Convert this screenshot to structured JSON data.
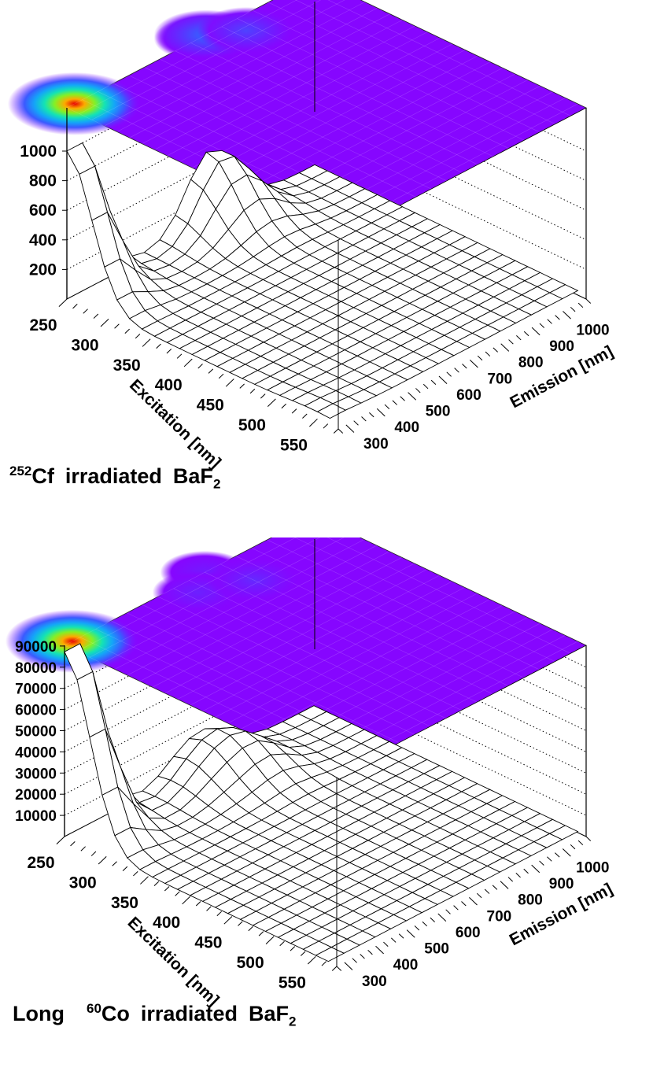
{
  "chart_data": [
    {
      "type": "surface3d",
      "x_label": "Excitation [nm]",
      "y_label": "Emission [nm]",
      "z_label": "",
      "x_range": [
        250,
        575
      ],
      "y_range": [
        275,
        1075
      ],
      "z_range": [
        0,
        1100
      ],
      "x_ticks": [
        "250",
        "300",
        "350",
        "400",
        "450",
        "500",
        "550"
      ],
      "y_ticks": [
        "300",
        "400",
        "500",
        "600",
        "700",
        "800",
        "900",
        "1000"
      ],
      "z_ticks": [
        "200",
        "400",
        "600",
        "800",
        "1000"
      ],
      "excitation_nm": [
        250,
        265,
        280,
        295,
        310,
        325,
        340,
        355,
        370,
        385,
        400,
        415,
        430,
        445,
        460,
        475,
        490,
        505,
        520,
        535,
        550,
        565
      ],
      "emission_nm": [
        275,
        325,
        375,
        425,
        475,
        525,
        575,
        625,
        675,
        725,
        775,
        825,
        875,
        925,
        975,
        1025,
        1075
      ],
      "peaks": [
        {
          "excitation_nm": 250,
          "emission_nm": 300,
          "value": 1040
        },
        {
          "excitation_nm": 250,
          "emission_nm": 700,
          "value": 90
        },
        {
          "excitation_nm": 250,
          "emission_nm": 725,
          "value": 300
        },
        {
          "excitation_nm": 270,
          "emission_nm": 800,
          "value": 200
        },
        {
          "excitation_nm": 545,
          "emission_nm": 300,
          "value": 20
        }
      ],
      "baseline": 30,
      "grid": true,
      "top_color_map": true,
      "caption_prefix": "252",
      "caption_element": "Cf",
      "caption_text": "irradiated",
      "caption_crystal": "BaF",
      "caption_sub": "2"
    },
    {
      "type": "surface3d",
      "x_label": "Excitation [nm]",
      "y_label": "Emission [nm]",
      "z_label": "",
      "x_range": [
        250,
        575
      ],
      "y_range": [
        275,
        1075
      ],
      "z_range": [
        0,
        95000
      ],
      "x_ticks": [
        "250",
        "300",
        "350",
        "400",
        "450",
        "500",
        "550"
      ],
      "y_ticks": [
        "300",
        "400",
        "500",
        "600",
        "700",
        "800",
        "900",
        "1000"
      ],
      "z_ticks": [
        "10000",
        "20000",
        "30000",
        "40000",
        "50000",
        "60000",
        "70000",
        "80000",
        "90000"
      ],
      "excitation_nm": [
        250,
        265,
        280,
        295,
        310,
        325,
        340,
        355,
        370,
        385,
        400,
        415,
        430,
        445,
        460,
        475,
        490,
        505,
        520,
        535,
        550,
        565
      ],
      "emission_nm": [
        275,
        325,
        375,
        425,
        475,
        525,
        575,
        625,
        675,
        725,
        775,
        825,
        875,
        925,
        975,
        1025,
        1075
      ],
      "peaks": [
        {
          "excitation_nm": 250,
          "emission_nm": 300,
          "value": 93000
        },
        {
          "excitation_nm": 250,
          "emission_nm": 725,
          "value": 8000
        },
        {
          "excitation_nm": 270,
          "emission_nm": 650,
          "value": 10000
        },
        {
          "excitation_nm": 290,
          "emission_nm": 775,
          "value": 12000
        }
      ],
      "baseline": 500,
      "grid": true,
      "top_color_map": true,
      "caption_lead": "Long",
      "caption_prefix": "60",
      "caption_element": "Co",
      "caption_text": "irradiated",
      "caption_crystal": "BaF",
      "caption_sub": "2"
    }
  ]
}
